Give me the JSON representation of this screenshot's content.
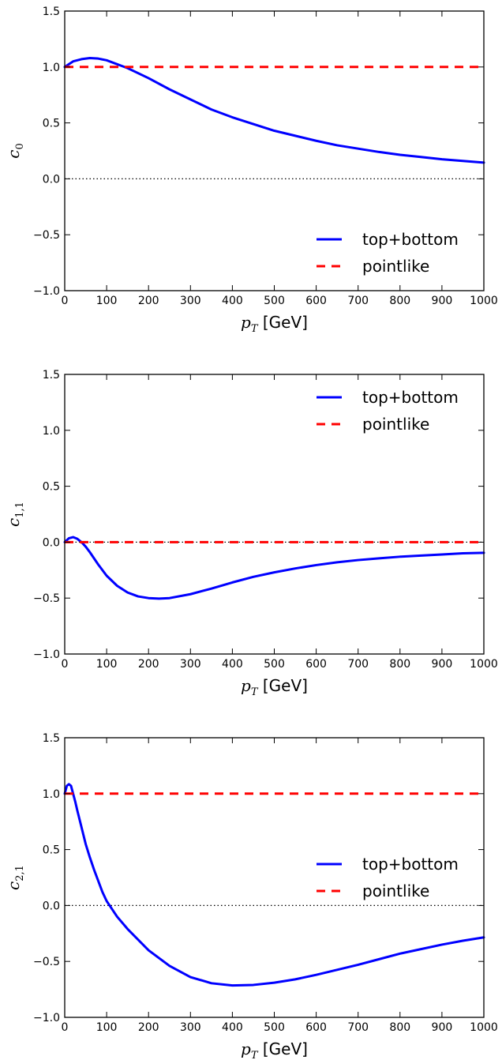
{
  "colors": {
    "top_bottom": "#0000ff",
    "pointlike": "#ff0000"
  },
  "chart_data": [
    {
      "type": "line",
      "ylabel_symbol": "c",
      "ylabel_sub": "0",
      "xlabel_symbol": "p",
      "xlabel_sub": "T",
      "xlabel_unit": " [GeV]",
      "xlim": [
        0,
        1000
      ],
      "ylim": [
        -1.0,
        1.5
      ],
      "xticks": [
        "0",
        "100",
        "200",
        "300",
        "400",
        "500",
        "600",
        "700",
        "800",
        "900",
        "1000"
      ],
      "yticks": [
        "−1.0",
        "−0.5",
        "0.0",
        "0.5",
        "1.0",
        "1.5"
      ],
      "legend_position": "lower-right",
      "reference_line": {
        "y": 0.0,
        "style": "dotted"
      },
      "series": [
        {
          "name": "top+bottom",
          "style": "solid",
          "x": [
            0,
            20,
            40,
            60,
            80,
            100,
            150,
            200,
            250,
            300,
            350,
            400,
            450,
            500,
            550,
            600,
            650,
            700,
            750,
            800,
            850,
            900,
            950,
            1000
          ],
          "y": [
            1.0,
            1.05,
            1.07,
            1.08,
            1.075,
            1.06,
            0.99,
            0.9,
            0.8,
            0.71,
            0.62,
            0.55,
            0.49,
            0.43,
            0.385,
            0.34,
            0.3,
            0.27,
            0.24,
            0.215,
            0.195,
            0.175,
            0.16,
            0.145
          ]
        },
        {
          "name": "pointlike",
          "style": "dashed",
          "x": [
            0,
            1000
          ],
          "y": [
            1.0,
            1.0
          ]
        }
      ]
    },
    {
      "type": "line",
      "ylabel_symbol": "c",
      "ylabel_sub": "1,1",
      "xlabel_symbol": "p",
      "xlabel_sub": "T",
      "xlabel_unit": " [GeV]",
      "xlim": [
        0,
        1000
      ],
      "ylim": [
        -1.0,
        1.5
      ],
      "xticks": [
        "0",
        "100",
        "200",
        "300",
        "400",
        "500",
        "600",
        "700",
        "800",
        "900",
        "1000"
      ],
      "yticks": [
        "−1.0",
        "−0.5",
        "0.0",
        "0.5",
        "1.0",
        "1.5"
      ],
      "legend_position": "upper-right",
      "reference_line": {
        "y": 0.0,
        "style": "dotted"
      },
      "series": [
        {
          "name": "top+bottom",
          "style": "solid",
          "x": [
            0,
            10,
            20,
            30,
            40,
            50,
            60,
            80,
            100,
            125,
            150,
            175,
            200,
            225,
            250,
            300,
            350,
            400,
            450,
            500,
            550,
            600,
            650,
            700,
            750,
            800,
            850,
            900,
            950,
            1000
          ],
          "y": [
            0.0,
            0.035,
            0.045,
            0.03,
            0.0,
            -0.04,
            -0.09,
            -0.2,
            -0.3,
            -0.39,
            -0.45,
            -0.485,
            -0.5,
            -0.505,
            -0.5,
            -0.465,
            -0.415,
            -0.36,
            -0.31,
            -0.27,
            -0.235,
            -0.205,
            -0.18,
            -0.16,
            -0.145,
            -0.13,
            -0.12,
            -0.11,
            -0.1,
            -0.095
          ]
        },
        {
          "name": "pointlike",
          "style": "dashed",
          "x": [
            0,
            1000
          ],
          "y": [
            0.0,
            0.0
          ]
        }
      ]
    },
    {
      "type": "line",
      "ylabel_symbol": "c",
      "ylabel_sub": "2,1",
      "xlabel_symbol": "p",
      "xlabel_sub": "T",
      "xlabel_unit": " [GeV]",
      "xlim": [
        0,
        1000
      ],
      "ylim": [
        -1.0,
        1.5
      ],
      "xticks": [
        "0",
        "100",
        "200",
        "300",
        "400",
        "500",
        "600",
        "700",
        "800",
        "900",
        "1000"
      ],
      "yticks": [
        "−1.0",
        "−0.5",
        "0.0",
        "0.5",
        "1.0",
        "1.5"
      ],
      "legend_position": "center-right",
      "reference_line": {
        "y": 0.0,
        "style": "dotted"
      },
      "series": [
        {
          "name": "top+bottom",
          "style": "solid",
          "x": [
            0,
            5,
            10,
            15,
            20,
            25,
            30,
            40,
            50,
            60,
            70,
            80,
            90,
            100,
            125,
            150,
            200,
            250,
            300,
            350,
            400,
            450,
            500,
            550,
            600,
            650,
            700,
            750,
            800,
            850,
            900,
            950,
            1000
          ],
          "y": [
            1.0,
            1.07,
            1.085,
            1.07,
            1.0,
            0.93,
            0.85,
            0.7,
            0.55,
            0.43,
            0.32,
            0.22,
            0.12,
            0.04,
            -0.1,
            -0.21,
            -0.4,
            -0.54,
            -0.64,
            -0.695,
            -0.715,
            -0.71,
            -0.69,
            -0.66,
            -0.62,
            -0.575,
            -0.53,
            -0.48,
            -0.43,
            -0.39,
            -0.35,
            -0.315,
            -0.285
          ]
        },
        {
          "name": "pointlike",
          "style": "dashed",
          "x": [
            0,
            1000
          ],
          "y": [
            1.0,
            1.0
          ]
        }
      ]
    }
  ]
}
